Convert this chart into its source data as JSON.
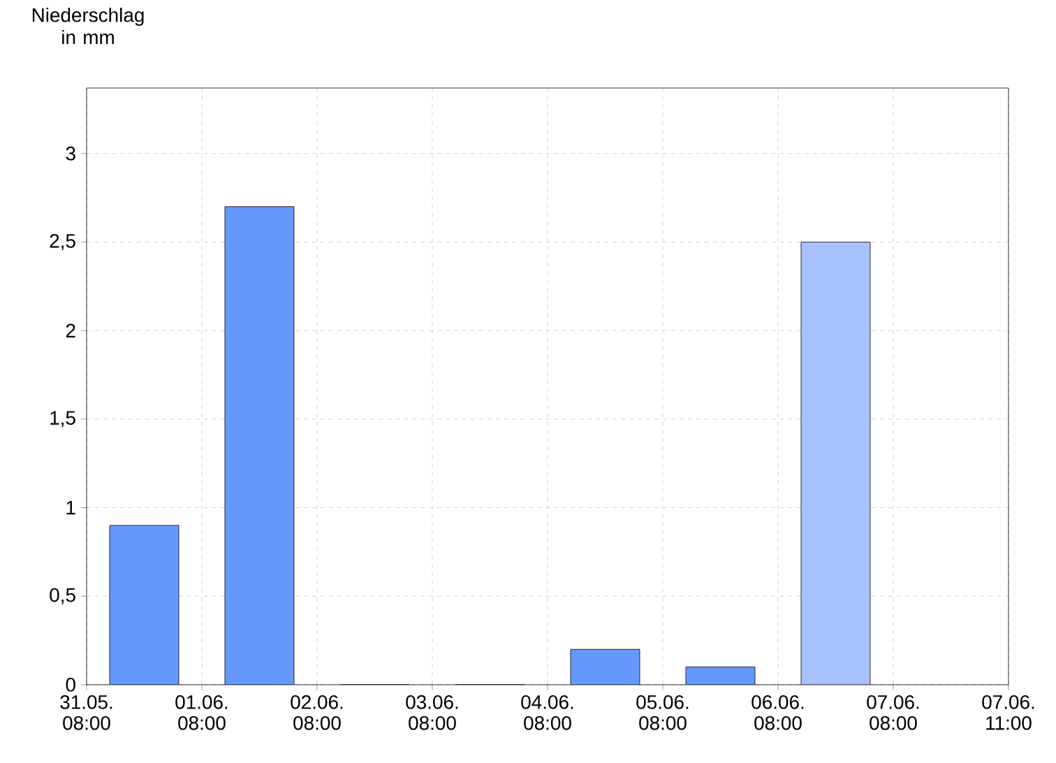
{
  "chart_data": {
    "type": "bar",
    "ylabel": "Niederschlag in mm",
    "categories": [
      null,
      null,
      null,
      null,
      null,
      null,
      null,
      null
    ],
    "values": [
      0.9,
      2.7,
      0,
      0,
      0.2,
      0.1,
      2.5,
      null
    ],
    "colors": [
      "#6699ff",
      "#6699ff",
      "#6699ff",
      "#6699ff",
      "#6699ff",
      "#6699ff",
      "#a8c2ff",
      "#6699ff"
    ],
    "annotations": [
      "31.05. 08:00",
      "01.06. 08:00",
      "02.06. 08:00",
      "03.06. 08:00",
      "04.06. 08:00",
      "05.06. 08:00",
      "06.06. 08:00",
      "07.06. 08:00",
      "07.06. 11:00"
    ],
    "ylim": [
      0,
      3.37
    ],
    "yticks": [
      0,
      {
        "value": 0.5,
        "label": "0,5"
      },
      1,
      {
        "value": 1.5,
        "label": "1,5"
      },
      2,
      {
        "value": 2.5,
        "label": "2,5"
      },
      3
    ],
    "grid": true
  }
}
